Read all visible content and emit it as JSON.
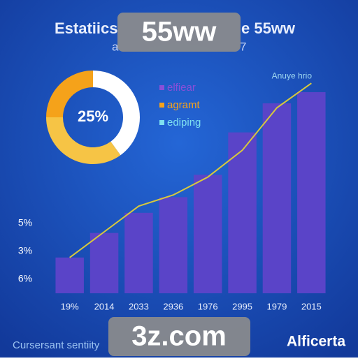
{
  "page": {
    "title_left": "Estatiics",
    "title_right": "e 55ww",
    "subtitle_left": "a",
    "subtitle_right": "7",
    "watermark_top": "55ww",
    "watermark_bottom": "3z.com",
    "footer": "Cursersant sentiity",
    "logo": "Alficerta"
  },
  "chart_data": [
    {
      "type": "pie",
      "donut": true,
      "center_label": "25%",
      "values": [
        40,
        35,
        25
      ],
      "colors": [
        "#ffffff",
        "#f6c445",
        "#f5a21a"
      ],
      "legend": [
        {
          "label": "elfiear",
          "color": "#8a4fd8"
        },
        {
          "label": "agramt",
          "color": "#f5a21a"
        },
        {
          "label": "ediping",
          "color": "#7fe0f0"
        }
      ]
    },
    {
      "type": "bar",
      "categories": [
        "19%",
        "2014",
        "2033",
        "2936",
        "1976",
        "2995",
        "1979",
        "2015"
      ],
      "y_labels": [
        "5%",
        "3%",
        "6%"
      ],
      "annotation": "Anuye hrio",
      "ylim": [
        0,
        100
      ],
      "series": [
        {
          "type": "bar",
          "color": "#5a44c8",
          "values": [
            16,
            27,
            36,
            43,
            53,
            72,
            85,
            90
          ]
        },
        {
          "type": "line",
          "color": "#d8c93c",
          "values": [
            16,
            27.5,
            39,
            44,
            52,
            64,
            83,
            94
          ]
        }
      ]
    }
  ]
}
